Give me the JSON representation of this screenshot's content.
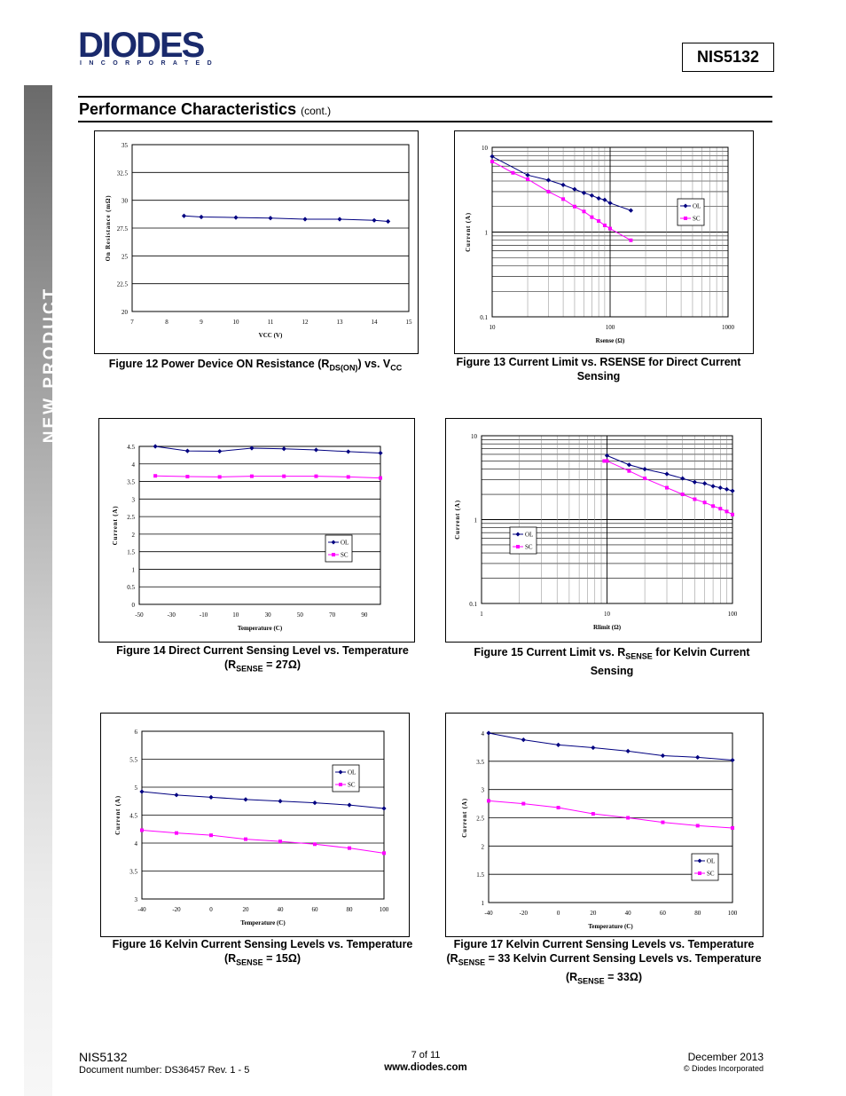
{
  "header": {
    "logo_text": "DIODES",
    "logo_sub": "INCORPORATED",
    "part_number": "NIS5132",
    "side_label": "NEW PRODUCT",
    "colors": {
      "logo": "#1a2a6c",
      "pink": "#ff00ff",
      "navy": "#000080"
    }
  },
  "section": {
    "title": "Performance Characteristics",
    "cont": "(cont.)"
  },
  "captions": {
    "fig12": {
      "pre": "Figure 12  Power Device ON Resistance (R",
      "sub1": "DS(ON)",
      "mid": ") vs. V",
      "sub2": "CC"
    },
    "fig13": "Figure 13  Current Limit vs. RSENSE for Direct Current Sensing",
    "fig14": {
      "line1": "Figure 14  Direct Current Sensing Level vs. Temperature",
      "pre": "(R",
      "sub": "SENSE",
      "post": " = 27Ω)"
    },
    "fig15": {
      "pre": "Figure 15  Current Limit vs. R",
      "sub": "SENSE",
      "post": " for Kelvin Current Sensing"
    },
    "fig16": {
      "line1": "Figure 16  Kelvin Current Sensing Levels vs. Temperature",
      "pre": "(R",
      "sub": "SENSE",
      "post": " = 15Ω)"
    },
    "fig17": {
      "line1": "Figure 17  Kelvin Current Sensing Levels vs. Temperature",
      "pre2": "(R",
      "sub2": "SENSE",
      "post2": " = 33 Kelvin Current Sensing Levels vs. Temperature",
      "pre3": "(R",
      "sub3": "SENSE",
      "post3": " = 33Ω)"
    }
  },
  "chart_data": [
    {
      "id": "fig12",
      "type": "line",
      "xlabel": "VCC (V)",
      "ylabel": "On Resistance (mΩ)",
      "xlim": [
        7,
        15
      ],
      "ylim": [
        20,
        35
      ],
      "xticks": [
        7,
        8,
        9,
        10,
        11,
        12,
        13,
        14,
        15
      ],
      "yticks": [
        20,
        22.5,
        25,
        27.5,
        30,
        32.5,
        35
      ],
      "ytick_labels": [
        "20",
        "22.5",
        "25",
        "27.5",
        "30",
        "32.5",
        "35"
      ],
      "grid": "horizontal",
      "legend": null,
      "series": [
        {
          "color": "#000080",
          "marker": "diamond",
          "x": [
            8.5,
            9,
            10,
            11,
            12,
            13,
            14,
            14.4
          ],
          "y": [
            28.6,
            28.5,
            28.45,
            28.4,
            28.3,
            28.3,
            28.2,
            28.1
          ]
        }
      ]
    },
    {
      "id": "fig13",
      "type": "line",
      "xlabel": "Rsense (Ω)",
      "ylabel": "Current (A)",
      "xscale": "log",
      "yscale": "log",
      "xlim": [
        10,
        1000
      ],
      "ylim": [
        0.1,
        10
      ],
      "xticks": [
        10,
        100,
        1000
      ],
      "yticks": [
        0.1,
        1,
        10
      ],
      "ytick_labels": [
        "0.1",
        "1",
        "10"
      ],
      "grid": "log",
      "legend": "right",
      "series": [
        {
          "name": "OL",
          "color": "#000080",
          "marker": "diamond",
          "x": [
            10,
            20,
            30,
            40,
            50,
            60,
            70,
            80,
            90,
            100,
            150
          ],
          "y": [
            7.8,
            4.7,
            4.1,
            3.6,
            3.2,
            2.9,
            2.7,
            2.5,
            2.4,
            2.2,
            1.8
          ]
        },
        {
          "name": "SC",
          "color": "#ff00ff",
          "marker": "square",
          "x": [
            10,
            15,
            20,
            30,
            40,
            50,
            60,
            70,
            80,
            90,
            100,
            150
          ],
          "y": [
            6.8,
            5.0,
            4.2,
            3.0,
            2.45,
            2.0,
            1.75,
            1.5,
            1.35,
            1.2,
            1.1,
            0.8
          ]
        }
      ]
    },
    {
      "id": "fig14",
      "type": "line",
      "xlabel": "Temperature (C)",
      "ylabel": "Current (A)",
      "xlim": [
        -50,
        100
      ],
      "ylim": [
        0,
        4.5
      ],
      "xticks": [
        -50,
        -30,
        -10,
        10,
        30,
        50,
        70,
        90
      ],
      "yticks": [
        0,
        0.5,
        1,
        1.5,
        2,
        2.5,
        3,
        3.5,
        4,
        4.5
      ],
      "ytick_labels": [
        "0",
        "0.5",
        "1",
        "1.5",
        "2",
        "2.5",
        "3",
        "3.5",
        "4",
        "4.5"
      ],
      "grid": "horizontal",
      "legend": "right",
      "series": [
        {
          "name": "OL",
          "color": "#000080",
          "marker": "diamond",
          "x": [
            -40,
            -20,
            0,
            20,
            40,
            60,
            80,
            100
          ],
          "y": [
            4.5,
            4.37,
            4.36,
            4.45,
            4.43,
            4.4,
            4.35,
            4.31
          ]
        },
        {
          "name": "SC",
          "color": "#ff00ff",
          "marker": "square",
          "x": [
            -40,
            -20,
            0,
            20,
            40,
            60,
            80,
            100
          ],
          "y": [
            3.66,
            3.64,
            3.63,
            3.65,
            3.65,
            3.65,
            3.63,
            3.6
          ]
        }
      ]
    },
    {
      "id": "fig15",
      "type": "line",
      "xlabel": "Rlimit (Ω)",
      "ylabel": "Current (A)",
      "xscale": "log",
      "yscale": "log",
      "xlim": [
        1,
        100
      ],
      "ylim": [
        0.1,
        10
      ],
      "xticks": [
        1,
        10,
        100
      ],
      "yticks": [
        0.1,
        1,
        10
      ],
      "ytick_labels": [
        "0.1",
        "1",
        "10"
      ],
      "grid": "log",
      "legend": "left",
      "series": [
        {
          "name": "OL",
          "color": "#000080",
          "marker": "diamond",
          "x": [
            10,
            15,
            20,
            30,
            40,
            50,
            60,
            70,
            80,
            90,
            100
          ],
          "y": [
            5.8,
            4.5,
            4.0,
            3.5,
            3.1,
            2.8,
            2.7,
            2.5,
            2.4,
            2.3,
            2.2
          ]
        },
        {
          "name": "SC",
          "color": "#ff00ff",
          "marker": "square",
          "x": [
            9.5,
            10,
            15,
            20,
            30,
            40,
            50,
            60,
            70,
            80,
            90,
            100
          ],
          "y": [
            5.0,
            5.0,
            3.8,
            3.1,
            2.4,
            2.0,
            1.75,
            1.6,
            1.45,
            1.35,
            1.25,
            1.15
          ]
        }
      ]
    },
    {
      "id": "fig16",
      "type": "line",
      "xlabel": "Temperature (C)",
      "ylabel": "Current (A)",
      "xlim": [
        -40,
        100
      ],
      "ylim": [
        3,
        6
      ],
      "xticks": [
        -40,
        -20,
        0,
        20,
        40,
        60,
        80,
        100
      ],
      "yticks": [
        3,
        3.5,
        4,
        4.5,
        5,
        5.5,
        6
      ],
      "ytick_labels": [
        "3",
        "3.5",
        "4",
        "4.5",
        "5",
        "5.5",
        "6"
      ],
      "grid": "horizontal",
      "legend": "right",
      "series": [
        {
          "name": "OL",
          "color": "#000080",
          "marker": "diamond",
          "x": [
            -40,
            -20,
            0,
            20,
            40,
            60,
            80,
            100
          ],
          "y": [
            4.92,
            4.86,
            4.82,
            4.78,
            4.75,
            4.72,
            4.68,
            4.62
          ]
        },
        {
          "name": "SC",
          "color": "#ff00ff",
          "marker": "square",
          "x": [
            -40,
            -20,
            0,
            20,
            40,
            60,
            80,
            100
          ],
          "y": [
            4.23,
            4.18,
            4.14,
            4.07,
            4.03,
            3.98,
            3.91,
            3.82
          ]
        }
      ]
    },
    {
      "id": "fig17",
      "type": "line",
      "xlabel": "Temperature (C)",
      "ylabel": "Current (A)",
      "xlim": [
        -40,
        100
      ],
      "ylim": [
        1,
        4
      ],
      "xticks": [
        -40,
        -20,
        0,
        20,
        40,
        60,
        80,
        100
      ],
      "yticks": [
        1,
        1.5,
        2,
        2.5,
        3,
        3.5,
        4
      ],
      "ytick_labels": [
        "1",
        "1.5",
        "2",
        "2.5",
        "3",
        "3.5",
        "4"
      ],
      "grid": "horizontal",
      "legend": "right",
      "series": [
        {
          "name": "OL",
          "color": "#000080",
          "marker": "diamond",
          "x": [
            -40,
            -20,
            0,
            20,
            40,
            60,
            80,
            100
          ],
          "y": [
            4.0,
            3.88,
            3.79,
            3.74,
            3.68,
            3.6,
            3.57,
            3.52
          ]
        },
        {
          "name": "SC",
          "color": "#ff00ff",
          "marker": "square",
          "x": [
            -40,
            -20,
            0,
            20,
            40,
            60,
            80,
            100
          ],
          "y": [
            2.8,
            2.75,
            2.68,
            2.57,
            2.5,
            2.42,
            2.36,
            2.32
          ]
        }
      ]
    }
  ],
  "footer": {
    "part": "NIS5132",
    "doc": "Document number: DS36457 Rev. 1 - 5",
    "page": "7 of 11",
    "url": "www.diodes.com",
    "date": "December 2013",
    "copyright": "© Diodes Incorporated"
  }
}
